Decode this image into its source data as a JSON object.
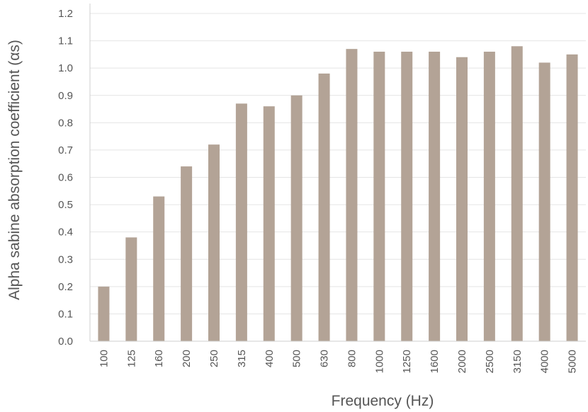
{
  "chart_data": {
    "type": "bar",
    "title": "",
    "xlabel": "Frequency (Hz)",
    "ylabel": "Alpha sabine absorption coefficient (αs)",
    "categories": [
      "100",
      "125",
      "160",
      "200",
      "250",
      "315",
      "400",
      "500",
      "630",
      "800",
      "1000",
      "1250",
      "1600",
      "2000",
      "2500",
      "3150",
      "4000",
      "5000"
    ],
    "values": [
      0.2,
      0.38,
      0.53,
      0.64,
      0.72,
      0.87,
      0.86,
      0.9,
      0.98,
      1.07,
      1.06,
      1.06,
      1.06,
      1.04,
      1.06,
      1.08,
      1.02,
      1.05
    ],
    "ylim": [
      0,
      1.2
    ],
    "yticks": [
      "0.0",
      "0.1",
      "0.2",
      "0.3",
      "0.4",
      "0.5",
      "0.6",
      "0.7",
      "0.8",
      "0.9",
      "1.0",
      "1.1",
      "1.2"
    ],
    "grid": "horizontal",
    "legend": "none",
    "colors": {
      "bar": "#b3a396"
    }
  }
}
